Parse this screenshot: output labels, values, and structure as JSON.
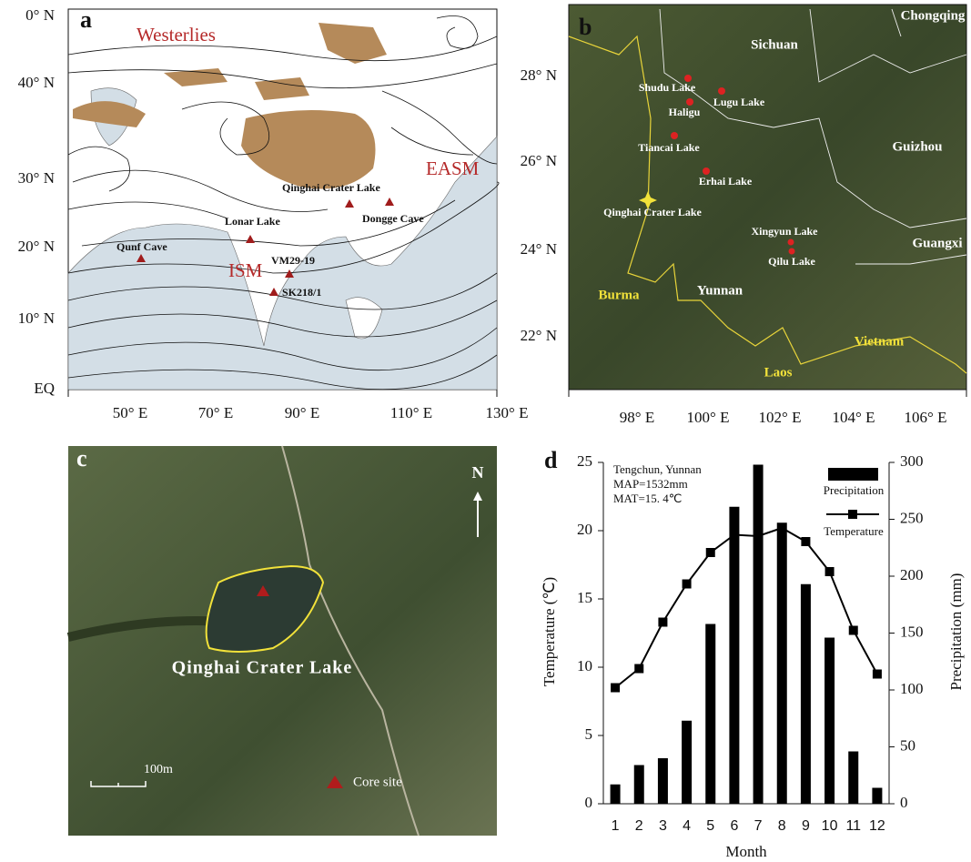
{
  "panel_a": {
    "label": "a",
    "lat_labels": [
      "0° N",
      "40° N",
      "30° N",
      "20° N",
      "10° N",
      "EQ"
    ],
    "lon_labels": [
      "50° E",
      "70° E",
      "90° E",
      "110° E",
      "130° E"
    ],
    "annotations": [
      "Westerlies",
      "EASM",
      "ISM"
    ],
    "sites": [
      "Qunf Cave",
      "Lonar Lake",
      "VM29-19",
      "SK218/1",
      "Qinghai Crater Lake",
      "Dongge Cave"
    ]
  },
  "panel_b": {
    "label": "b",
    "lat_labels": [
      "28° N",
      "26° N",
      "24° N",
      "22° N"
    ],
    "lon_labels": [
      "98° E",
      "100° E",
      "102° E",
      "104° E",
      "106° E"
    ],
    "regions": [
      "Sichuan",
      "Chongqing",
      "Guizhou",
      "Guangxi",
      "Yunnan",
      "Burma",
      "Vietnam",
      "Laos"
    ],
    "lakes": [
      "Shudu Lake",
      "Lugu Lake",
      "Haligu",
      "Tiancai Lake",
      "Erhai Lake",
      "Qinghai Crater Lake",
      "Xingyun Lake",
      "Qilu Lake"
    ]
  },
  "panel_c": {
    "label": "c",
    "north": "N",
    "lake": "Qinghai Crater Lake",
    "scale": "100m",
    "legend": "Core site"
  },
  "chart_data": {
    "type": "combo",
    "panel_label": "d",
    "annotations": [
      "Tengchun, Yunnan",
      "MAP=1532mm",
      "MAT=15. 4℃"
    ],
    "x_label": "Month",
    "y_label": "Temperature (℃)",
    "y2_label": "Precipitation (mm)",
    "categories": [
      "1",
      "2",
      "3",
      "4",
      "5",
      "6",
      "7",
      "8",
      "9",
      "10",
      "11",
      "12"
    ],
    "series": [
      {
        "name": "Precipitation",
        "type": "bar",
        "axis": "y2",
        "color": "#000000",
        "values": [
          17,
          34,
          40,
          73,
          158,
          261,
          298,
          247,
          193,
          146,
          46,
          14
        ]
      },
      {
        "name": "Temperature",
        "type": "line",
        "color": "#000000",
        "values": [
          8.5,
          9.9,
          13.3,
          16.1,
          18.4,
          19.7,
          19.6,
          20.2,
          19.2,
          17.0,
          12.7,
          9.5
        ]
      }
    ],
    "ylim": [
      0,
      25
    ],
    "yticks": [
      0,
      5,
      10,
      15,
      20,
      25
    ],
    "y2lim": [
      0,
      300
    ],
    "y2ticks": [
      0,
      50,
      100,
      150,
      200,
      250,
      300
    ],
    "legend": "upper right"
  }
}
